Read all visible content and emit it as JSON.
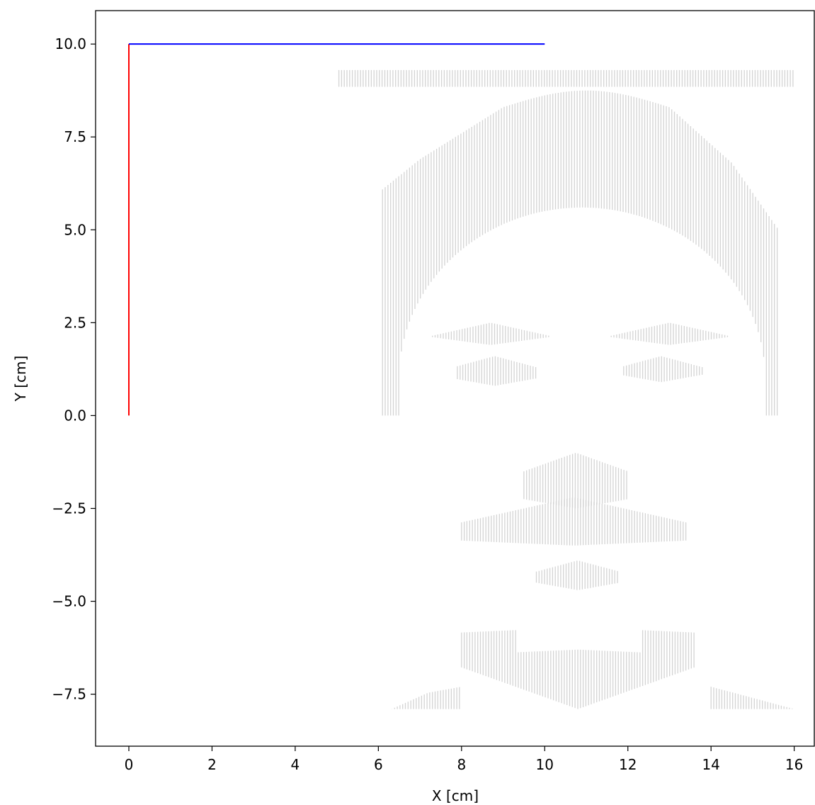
{
  "chart_data": {
    "type": "line",
    "title": "",
    "xlabel": "X [cm]",
    "ylabel": "Y [cm]",
    "xlim": [
      -0.8,
      16.5
    ],
    "ylim": [
      -8.9,
      10.9
    ],
    "xticks": [
      0,
      2,
      4,
      6,
      8,
      10,
      12,
      14,
      16
    ],
    "yticks": [
      -7.5,
      -5.0,
      -2.5,
      0.0,
      2.5,
      5.0,
      7.5,
      10.0
    ],
    "xtick_labels": [
      "0",
      "2",
      "4",
      "6",
      "8",
      "10",
      "12",
      "14",
      "16"
    ],
    "ytick_labels": [
      "−7.5",
      "−5.0",
      "−2.5",
      "0.0",
      "2.5",
      "5.0",
      "7.5",
      "10.0"
    ],
    "grid": false,
    "series": [
      {
        "color": "#ff0000",
        "x": [
          0,
          0
        ],
        "y": [
          0,
          10
        ]
      },
      {
        "color": "#0000ff",
        "x": [
          0,
          10
        ],
        "y": [
          10,
          10
        ]
      }
    ],
    "background_pattern": {
      "description_visible": false,
      "color": "#d3d3d3",
      "kind": "vertical hatch strokes forming a face portrait",
      "x_range": [
        5.0,
        16.0
      ],
      "y_range": [
        -8.0,
        9.3
      ]
    }
  }
}
